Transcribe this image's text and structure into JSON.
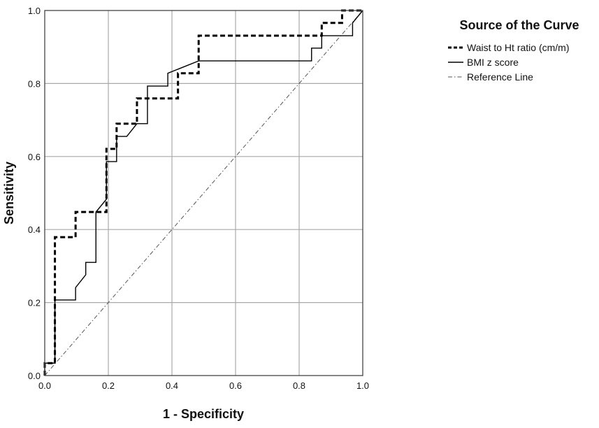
{
  "chart_data": {
    "type": "line",
    "xlabel": "1 - Specificity",
    "ylabel": "Sensitivity",
    "xlim": [
      0,
      1
    ],
    "ylim": [
      0,
      1
    ],
    "x_ticks": [
      "0.0",
      "0.2",
      "0.4",
      "0.6",
      "0.8",
      "1.0"
    ],
    "y_ticks": [
      "0.0",
      "0.2",
      "0.4",
      "0.6",
      "0.8",
      "1.0"
    ],
    "grid": true,
    "legend": {
      "title": "Source of the Curve",
      "position": "right"
    },
    "series": [
      {
        "name": "Waist to Ht ratio (cm/m)",
        "style": "dashed-thick",
        "color": "#000000",
        "x": [
          0,
          0,
          0.032,
          0.032,
          0.097,
          0.097,
          0.194,
          0.194,
          0.226,
          0.226,
          0.29,
          0.29,
          0.419,
          0.419,
          0.484,
          0.484,
          0.871,
          0.871,
          0.935,
          0.935,
          1
        ],
        "y": [
          0,
          0.034,
          0.034,
          0.379,
          0.379,
          0.448,
          0.448,
          0.621,
          0.621,
          0.69,
          0.69,
          0.759,
          0.759,
          0.828,
          0.828,
          0.931,
          0.931,
          0.966,
          0.966,
          1,
          1
        ]
      },
      {
        "name": "BMI z score",
        "style": "solid",
        "color": "#000000",
        "x": [
          0,
          0,
          0.032,
          0.032,
          0.097,
          0.097,
          0.129,
          0.129,
          0.161,
          0.161,
          0.194,
          0.194,
          0.226,
          0.226,
          0.258,
          0.29,
          0.323,
          0.323,
          0.387,
          0.387,
          0.484,
          0.839,
          0.839,
          0.871,
          0.871,
          0.968,
          0.968,
          1
        ],
        "y": [
          0,
          0.034,
          0.034,
          0.207,
          0.207,
          0.241,
          0.276,
          0.31,
          0.31,
          0.448,
          0.483,
          0.586,
          0.586,
          0.655,
          0.655,
          0.69,
          0.69,
          0.793,
          0.793,
          0.828,
          0.862,
          0.862,
          0.897,
          0.897,
          0.931,
          0.931,
          0.966,
          1
        ]
      },
      {
        "name": "Reference Line",
        "style": "dash-dot-thin",
        "color": "#555555",
        "x": [
          0,
          1
        ],
        "y": [
          0,
          1
        ]
      }
    ]
  }
}
